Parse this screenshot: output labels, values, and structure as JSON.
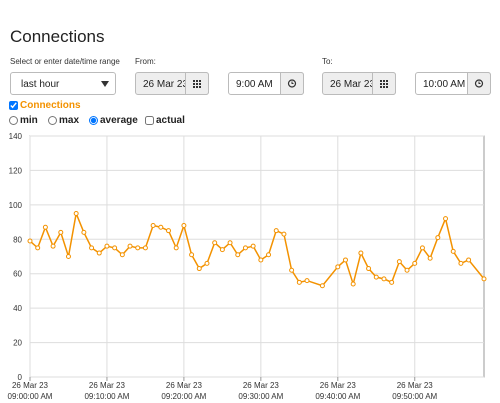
{
  "header": {
    "title": "Connections"
  },
  "range": {
    "label": "Select or enter date/time range",
    "selected": "last hour"
  },
  "from": {
    "label": "From:",
    "date": "26 Mar 23",
    "time": "9:00 AM"
  },
  "to": {
    "label": "To:",
    "date": "26 Mar 23",
    "time": "10:00 AM"
  },
  "series_toggle": {
    "label": "Connections",
    "checked": true
  },
  "modes": [
    {
      "label": "min",
      "checked": false
    },
    {
      "label": "max",
      "checked": false
    },
    {
      "label": "average",
      "checked": true
    }
  ],
  "actual": {
    "label": "actual",
    "checked": false
  },
  "chart_data": {
    "type": "line",
    "x": [
      "09:00:00",
      "09:01:00",
      "09:02:00",
      "09:03:00",
      "09:04:00",
      "09:05:00",
      "09:06:00",
      "09:07:00",
      "09:08:00",
      "09:09:00",
      "09:10:00",
      "09:11:00",
      "09:12:00",
      "09:13:00",
      "09:14:00",
      "09:15:00",
      "09:16:00",
      "09:17:00",
      "09:18:00",
      "09:19:00",
      "09:20:00",
      "09:21:00",
      "09:22:00",
      "09:23:00",
      "09:24:00",
      "09:25:00",
      "09:26:00",
      "09:27:00",
      "09:28:00",
      "09:29:00",
      "09:30:00",
      "09:31:00",
      "09:32:00",
      "09:33:00",
      "09:34:00",
      "09:35:00",
      "09:36:00",
      "09:38:00",
      "09:40:00",
      "09:41:00",
      "09:42:00",
      "09:43:00",
      "09:44:00",
      "09:45:00",
      "09:46:00",
      "09:47:00",
      "09:48:00",
      "09:49:00",
      "09:50:00",
      "09:51:00",
      "09:52:00",
      "09:53:00",
      "09:54:00",
      "09:55:00",
      "09:56:00",
      "09:57:00",
      "09:59:00"
    ],
    "series": [
      {
        "name": "Connections",
        "color": "#f39200",
        "values": [
          79,
          75,
          87,
          76,
          84,
          70,
          95,
          84,
          75,
          72,
          76,
          75,
          71,
          76,
          75,
          75,
          88,
          87,
          85,
          75,
          88,
          71,
          63,
          66,
          78,
          74,
          78,
          71,
          75,
          76,
          68,
          71,
          85,
          83,
          62,
          55,
          56,
          53,
          64,
          68,
          54,
          72,
          63,
          58,
          57,
          55,
          67,
          62,
          66,
          75,
          69,
          81,
          92,
          73,
          66,
          68,
          57
        ]
      }
    ],
    "xlim": [
      "09:00:00",
      "09:59:00"
    ],
    "xticks": [
      {
        "value": "09:00:00",
        "label": [
          "26 Mar 23",
          "09:00:00 AM"
        ]
      },
      {
        "value": "09:10:00",
        "label": [
          "26 Mar 23",
          "09:10:00 AM"
        ]
      },
      {
        "value": "09:20:00",
        "label": [
          "26 Mar 23",
          "09:20:00 AM"
        ]
      },
      {
        "value": "09:30:00",
        "label": [
          "26 Mar 23",
          "09:30:00 AM"
        ]
      },
      {
        "value": "09:40:00",
        "label": [
          "26 Mar 23",
          "09:40:00 AM"
        ]
      },
      {
        "value": "09:50:00",
        "label": [
          "26 Mar 23",
          "09:50:00 AM"
        ]
      }
    ],
    "ylim": [
      0,
      140
    ],
    "yticks": [
      0,
      20,
      40,
      60,
      80,
      100,
      120,
      140
    ],
    "grid": true
  }
}
